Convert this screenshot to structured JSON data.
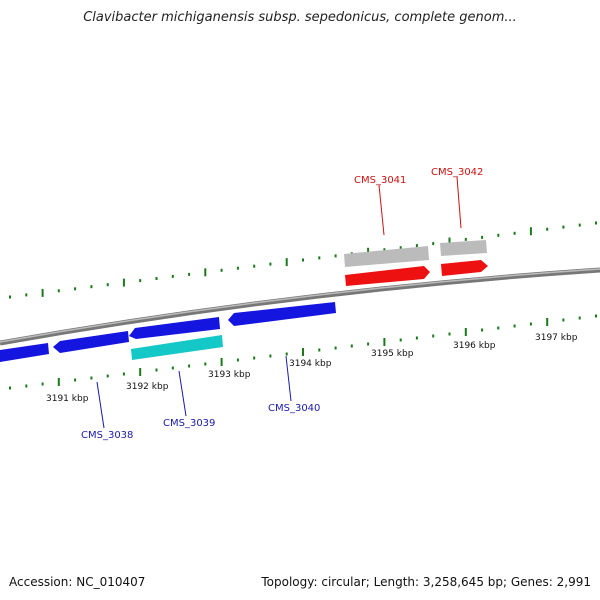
{
  "title": "Clavibacter michiganensis subsp. sepedonicus, complete genom...",
  "footer": {
    "accession": "Accession: NC_010407",
    "summary": "Topology: circular; Length: 3,258,645 bp; Genes: 2,991"
  },
  "colors": {
    "backbone": "#888888",
    "tick": "#1a7a1a",
    "gene_blue": "#1515e0",
    "gene_cyan": "#14c8c8",
    "gene_red": "#ee1111",
    "gene_grey": "#bbbbbb",
    "label_blue": "#1a1aaa",
    "label_red": "#cc1111"
  },
  "ticks": [
    {
      "label": "3191 kbp"
    },
    {
      "label": "3192 kbp"
    },
    {
      "label": "3193 kbp"
    },
    {
      "label": "3194 kbp"
    },
    {
      "label": "3195 kbp"
    },
    {
      "label": "3196 kbp"
    },
    {
      "label": "3197 kbp"
    }
  ],
  "gene_labels": [
    {
      "label": "CMS_3038",
      "strand": "reverse"
    },
    {
      "label": "CMS_3039",
      "strand": "reverse"
    },
    {
      "label": "CMS_3040",
      "strand": "reverse"
    },
    {
      "label": "CMS_3041",
      "strand": "forward"
    },
    {
      "label": "CMS_3042",
      "strand": "forward"
    }
  ]
}
